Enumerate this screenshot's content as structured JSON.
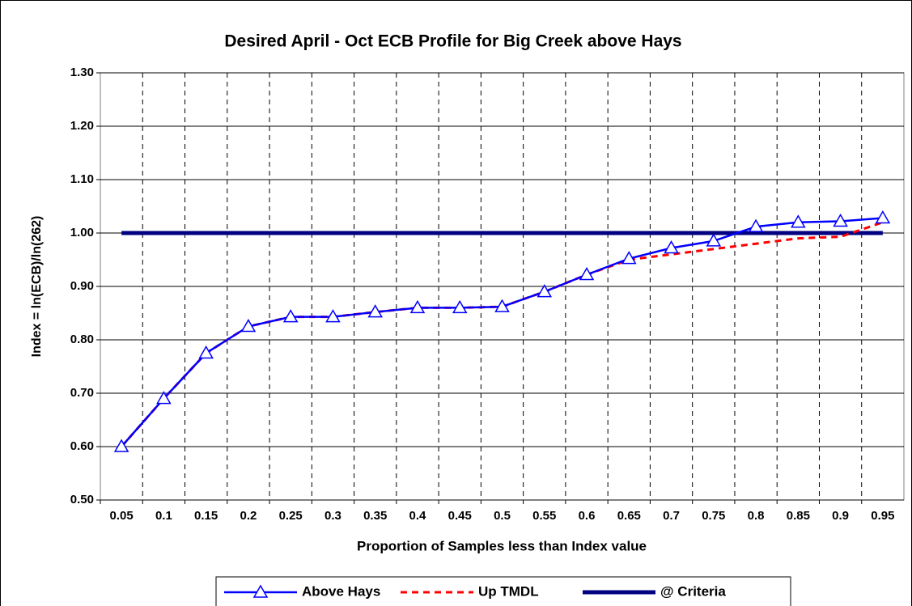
{
  "chart_data": {
    "type": "line",
    "title": "Desired April - Oct ECB Profile for Big Creek above Hays",
    "x_label": "Proportion of Samples less than Index value",
    "y_label": "Index = ln(ECB)/ln(262)",
    "categories": [
      "0.05",
      "0.1",
      "0.15",
      "0.2",
      "0.25",
      "0.3",
      "0.35",
      "0.4",
      "0.45",
      "0.5",
      "0.55",
      "0.6",
      "0.65",
      "0.7",
      "0.75",
      "0.8",
      "0.85",
      "0.9",
      "0.95"
    ],
    "series": [
      {
        "name": "Above Hays",
        "color": "#0000ff",
        "marker": "triangle",
        "values": [
          0.6,
          0.69,
          0.775,
          0.825,
          0.843,
          0.843,
          0.852,
          0.86,
          0.86,
          0.862,
          0.89,
          0.922,
          0.952,
          0.972,
          0.985,
          1.012,
          1.02,
          1.022,
          1.028
        ]
      },
      {
        "name": "Up TMDL",
        "color": "#ff0000",
        "dash": true,
        "values": [
          0.6,
          0.69,
          0.775,
          0.825,
          0.843,
          0.843,
          0.852,
          0.86,
          0.86,
          0.862,
          0.89,
          0.922,
          0.95,
          0.96,
          0.97,
          0.98,
          0.99,
          0.993,
          1.02
        ]
      },
      {
        "name": "@ Criteria",
        "color": "#000080",
        "thick": true,
        "values": [
          1,
          1,
          1,
          1,
          1,
          1,
          1,
          1,
          1,
          1,
          1,
          1,
          1,
          1,
          1,
          1,
          1,
          1,
          1
        ]
      }
    ],
    "ylim": [
      0.5,
      1.3
    ],
    "yticks": [
      {
        "value": 0.5,
        "label": "0.50"
      },
      {
        "value": 0.6,
        "label": "0.60"
      },
      {
        "value": 0.7,
        "label": "0.70"
      },
      {
        "value": 0.8,
        "label": "0.80"
      },
      {
        "value": 0.9,
        "label": "0.90"
      },
      {
        "value": 1.0,
        "label": "1.00"
      },
      {
        "value": 1.1,
        "label": "1.10"
      },
      {
        "value": 1.2,
        "label": "1.20"
      },
      {
        "value": 1.3,
        "label": "1.30"
      }
    ],
    "grid": true,
    "legend": "bottom"
  }
}
